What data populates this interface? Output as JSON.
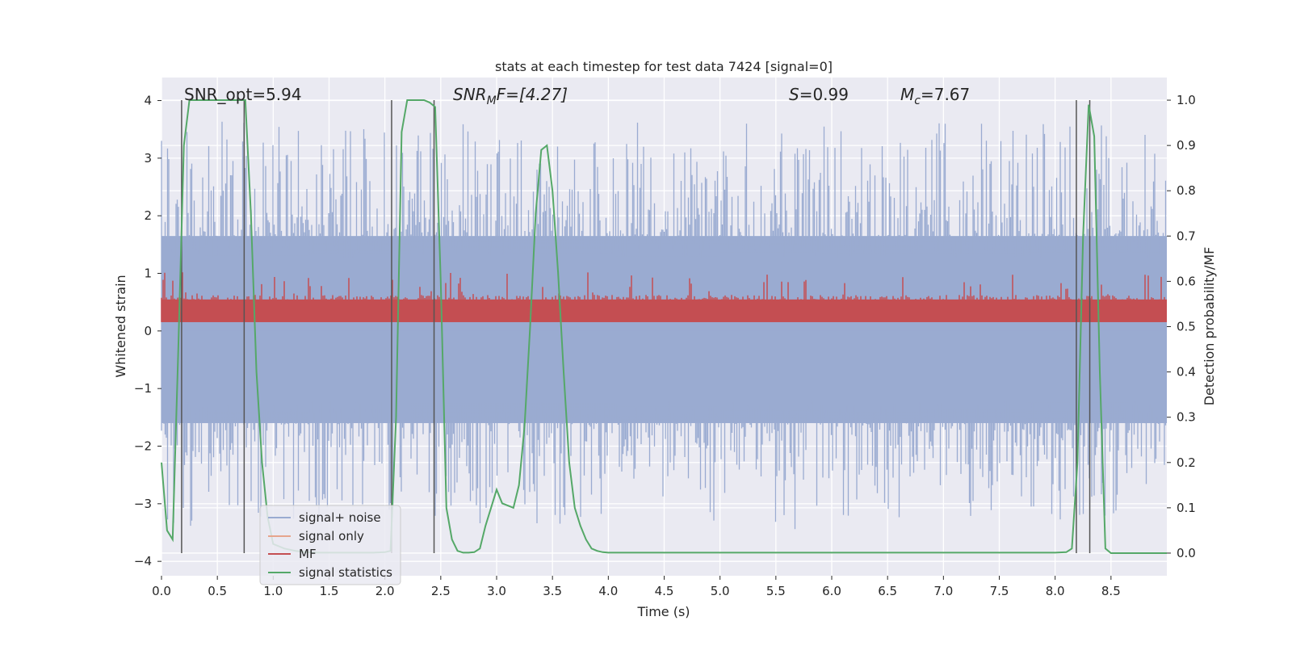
{
  "chart_data": {
    "type": "line",
    "title": "stats at each timestep for test data 7424 [signal=0]",
    "xlabel": "Time (s)",
    "ylabel_left": "Whitened strain",
    "ylabel_right": "Detection probability/MF",
    "xlim": [
      0.0,
      9.0
    ],
    "ylim_left": [
      -4.25,
      4.4
    ],
    "ylim_right": [
      -0.05,
      1.05
    ],
    "xticks": [
      0.0,
      0.5,
      1.0,
      1.5,
      2.0,
      2.5,
      3.0,
      3.5,
      4.0,
      4.5,
      5.0,
      5.5,
      6.0,
      6.5,
      7.0,
      7.5,
      8.0,
      8.5
    ],
    "xtick_labels": [
      "0.0",
      "0.5",
      "1.0",
      "1.5",
      "2.0",
      "2.5",
      "3.0",
      "3.5",
      "4.0",
      "4.5",
      "5.0",
      "5.5",
      "6.0",
      "6.5",
      "7.0",
      "7.5",
      "8.0",
      "8.5"
    ],
    "yticks_left": [
      -4,
      -3,
      -2,
      -1,
      0,
      1,
      2,
      3,
      4
    ],
    "ytick_labels_left": [
      "−4",
      "−3",
      "−2",
      "−1",
      "0",
      "1",
      "2",
      "3",
      "4"
    ],
    "yticks_right": [
      0.0,
      0.1,
      0.2,
      0.3,
      0.4,
      0.5,
      0.6,
      0.7,
      0.8,
      0.9,
      1.0
    ],
    "ytick_labels_right": [
      "0.0",
      "0.1",
      "0.2",
      "0.3",
      "0.4",
      "0.5",
      "0.6",
      "0.7",
      "0.8",
      "0.9",
      "1.0"
    ],
    "annotations": {
      "snr_opt": "SNR_opt=5.94",
      "snr_mf_main": "SNR",
      "snr_mf_sub": "M",
      "snr_mf_rest": "F=[4.27]",
      "s_var": "S",
      "s_rest": "=0.99",
      "mc_var": "M",
      "mc_sub": "c",
      "mc_rest": "=7.67"
    },
    "vertical_markers_s": [
      0.18,
      0.74,
      2.06,
      2.44,
      8.19,
      8.31
    ],
    "series": [
      {
        "name": "signal+ noise",
        "axis": "left",
        "color": "#9aabd1",
        "kind": "noise",
        "upper_typical": 1.65,
        "upper_peak": 4.1,
        "lower_typical": -1.6,
        "lower_peak": -3.9
      },
      {
        "name": "signal only",
        "axis": "left",
        "color": "#e6a58c",
        "kind": "none"
      },
      {
        "name": "MF",
        "axis": "right",
        "color": "#c44e52",
        "kind": "band",
        "band_low": 0.51,
        "band_high": 0.56,
        "peak": 0.62
      },
      {
        "name": "signal statistics",
        "axis": "right",
        "color": "#55a868",
        "kind": "line",
        "x": [
          0.0,
          0.05,
          0.1,
          0.15,
          0.2,
          0.25,
          0.3,
          0.35,
          0.4,
          0.45,
          0.5,
          0.55,
          0.6,
          0.65,
          0.7,
          0.75,
          0.8,
          0.85,
          0.9,
          0.95,
          1.0,
          1.1,
          1.2,
          1.3,
          1.4,
          1.5,
          1.6,
          1.7,
          1.8,
          1.9,
          2.0,
          2.05,
          2.1,
          2.15,
          2.2,
          2.25,
          2.3,
          2.35,
          2.4,
          2.45,
          2.5,
          2.55,
          2.6,
          2.65,
          2.7,
          2.75,
          2.8,
          2.85,
          2.9,
          2.95,
          3.0,
          3.05,
          3.1,
          3.15,
          3.2,
          3.25,
          3.3,
          3.35,
          3.4,
          3.45,
          3.5,
          3.55,
          3.6,
          3.65,
          3.7,
          3.75,
          3.8,
          3.85,
          3.9,
          3.95,
          4.0,
          4.5,
          5.0,
          5.5,
          6.0,
          6.5,
          7.0,
          7.5,
          8.0,
          8.1,
          8.15,
          8.2,
          8.25,
          8.3,
          8.35,
          8.4,
          8.45,
          8.5,
          8.6,
          8.7,
          8.8,
          8.9,
          9.0
        ],
        "y": [
          0.2,
          0.05,
          0.03,
          0.45,
          0.9,
          1.0,
          1.0,
          1.0,
          1.0,
          1.0,
          1.0,
          1.0,
          1.0,
          1.0,
          1.0,
          1.0,
          0.75,
          0.4,
          0.2,
          0.08,
          0.02,
          0.01,
          0.005,
          0.002,
          0.001,
          0.001,
          0.001,
          0.001,
          0.001,
          0.001,
          0.002,
          0.005,
          0.3,
          0.93,
          1.0,
          1.0,
          1.0,
          1.0,
          0.995,
          0.985,
          0.6,
          0.1,
          0.03,
          0.005,
          0.001,
          0.001,
          0.002,
          0.01,
          0.06,
          0.1,
          0.14,
          0.11,
          0.105,
          0.1,
          0.15,
          0.28,
          0.5,
          0.75,
          0.89,
          0.9,
          0.8,
          0.62,
          0.4,
          0.2,
          0.1,
          0.06,
          0.03,
          0.01,
          0.005,
          0.002,
          0.001,
          0.001,
          0.001,
          0.001,
          0.001,
          0.001,
          0.001,
          0.001,
          0.001,
          0.002,
          0.01,
          0.2,
          0.7,
          0.99,
          0.92,
          0.4,
          0.01,
          0.0,
          0.0,
          0.0,
          0.0,
          0.0,
          0.0
        ]
      }
    ],
    "legend_placement": "lower-left",
    "grid": true,
    "colors": {
      "axes_background": "#eaeaf2",
      "grid": "#ffffff",
      "marker_line": "#555555",
      "text": "#262626"
    }
  }
}
